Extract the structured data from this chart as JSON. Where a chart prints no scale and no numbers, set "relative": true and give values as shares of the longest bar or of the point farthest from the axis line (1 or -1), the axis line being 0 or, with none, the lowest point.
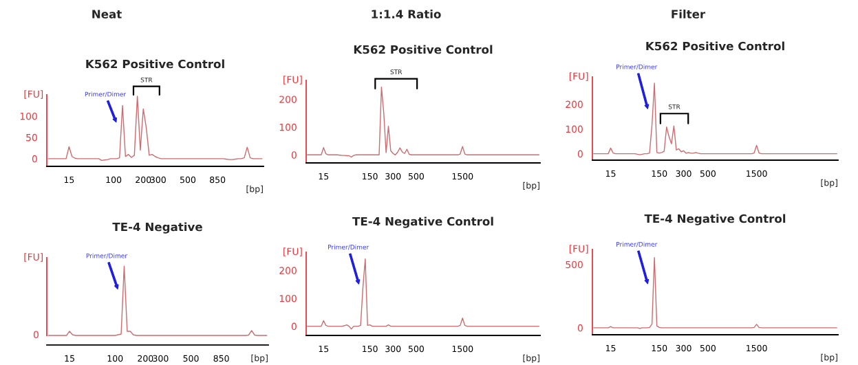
{
  "chart_data": [
    {
      "type": "line",
      "title": "Neat",
      "subtitle": "K562 Positive Control",
      "xlabel": "[bp]",
      "ylabel": "[FU]",
      "annotations": [
        "Primer/Dimer",
        "STR"
      ],
      "ylim": [
        -18,
        150
      ],
      "yticks": [
        0,
        50,
        100
      ],
      "categories": [
        null,
        null,
        null,
        null,
        null,
        null,
        null,
        "15",
        null,
        null,
        null,
        null,
        null,
        null,
        null,
        null,
        null,
        null,
        null,
        null,
        null,
        null,
        "100",
        null,
        null,
        null,
        null,
        null,
        null,
        null,
        null,
        null,
        "200",
        null,
        null,
        null,
        null,
        "300",
        null,
        null,
        null,
        null,
        null,
        null,
        null,
        null,
        null,
        "500",
        null,
        null,
        null,
        null,
        null,
        null,
        null,
        null,
        null,
        "850",
        null,
        null,
        null,
        null,
        null,
        null,
        null,
        null,
        null,
        null,
        null,
        null,
        null,
        null,
        null
      ],
      "series": [
        {
          "color": "#cd6b6e",
          "values": [
            0,
            0,
            0,
            0,
            0,
            0,
            0,
            28,
            5,
            1,
            0,
            0,
            0,
            0,
            0,
            0,
            0,
            0,
            -4,
            -3,
            -2,
            0,
            0,
            0,
            2,
            125,
            5,
            10,
            3,
            8,
            147,
            20,
            117,
            73,
            8,
            10,
            5,
            2,
            0,
            0,
            0,
            0,
            0,
            0,
            0,
            0,
            0,
            0,
            0,
            0,
            0,
            0,
            0,
            0,
            0,
            0,
            0,
            0,
            0,
            0,
            -1,
            -2,
            -2,
            -1,
            0,
            0,
            2,
            27,
            2,
            0,
            0,
            0,
            0
          ]
        }
      ]
    },
    {
      "type": "line",
      "title": "1:1.4 Ratio",
      "subtitle": "K562 Positive Control",
      "xlabel": "[bp]",
      "ylabel": "[FU]",
      "annotations": [
        "STR"
      ],
      "ylim": [
        -29,
        268
      ],
      "yticks": [
        0,
        100,
        200
      ],
      "categories": [
        null,
        null,
        null,
        null,
        null,
        null,
        null,
        "15",
        null,
        null,
        null,
        null,
        null,
        null,
        null,
        null,
        null,
        null,
        null,
        null,
        null,
        null,
        null,
        null,
        null,
        null,
        null,
        "150",
        null,
        null,
        null,
        null,
        null,
        null,
        null,
        null,
        null,
        "300",
        null,
        null,
        null,
        null,
        null,
        null,
        null,
        null,
        null,
        "500",
        null,
        null,
        null,
        null,
        null,
        null,
        null,
        null,
        null,
        null,
        null,
        null,
        null,
        null,
        null,
        null,
        null,
        null,
        null,
        "1500",
        null,
        null,
        null,
        null,
        null,
        null,
        null,
        null,
        null,
        null,
        null,
        null,
        null,
        null,
        null,
        null,
        null,
        null,
        null,
        null,
        null,
        null,
        null,
        null,
        null,
        null,
        null,
        null,
        null,
        null,
        null,
        null,
        null
      ],
      "series": [
        {
          "color": "#cd6b6e",
          "values": [
            0,
            0,
            0,
            0,
            0,
            0,
            0,
            26,
            4,
            0,
            0,
            0,
            0,
            0,
            -1,
            -2,
            -2,
            -3,
            -3,
            -8,
            -2,
            0,
            0,
            0,
            0,
            0,
            0,
            0,
            0,
            0,
            0,
            0,
            244,
            150,
            8,
            103,
            15,
            5,
            0,
            10,
            25,
            10,
            5,
            20,
            2,
            0,
            0,
            0,
            0,
            0,
            0,
            0,
            0,
            0,
            0,
            0,
            0,
            0,
            0,
            0,
            0,
            0,
            0,
            0,
            0,
            0,
            3,
            30,
            3,
            0,
            0,
            0,
            0,
            0,
            0,
            0,
            0,
            0,
            0,
            0,
            0,
            0,
            0,
            0,
            0,
            0,
            0,
            0,
            0,
            0,
            0,
            0,
            0,
            0,
            0,
            0,
            0,
            0,
            0,
            0,
            0
          ]
        }
      ]
    },
    {
      "type": "line",
      "title": "Filter",
      "subtitle": "K562 Positive Control",
      "xlabel": "[bp]",
      "ylabel": "[FU]",
      "annotations": [
        "Primer/Dimer",
        "STR"
      ],
      "ylim": [
        -26,
        310
      ],
      "yticks": [
        0,
        100,
        200
      ],
      "categories": [
        null,
        null,
        null,
        null,
        null,
        null,
        null,
        "15",
        null,
        null,
        null,
        null,
        null,
        null,
        null,
        null,
        null,
        null,
        null,
        null,
        null,
        null,
        null,
        null,
        null,
        null,
        null,
        "150",
        null,
        null,
        null,
        null,
        null,
        null,
        null,
        null,
        null,
        "300",
        null,
        null,
        null,
        null,
        null,
        null,
        null,
        null,
        null,
        "500",
        null,
        null,
        null,
        null,
        null,
        null,
        null,
        null,
        null,
        null,
        null,
        null,
        null,
        null,
        null,
        null,
        null,
        null,
        null,
        "1500",
        null,
        null,
        null,
        null,
        null,
        null,
        null,
        null,
        null,
        null,
        null,
        null,
        null,
        null,
        null,
        null,
        null,
        null,
        null,
        null,
        null,
        null,
        null,
        null,
        null,
        null,
        null,
        null,
        null,
        null,
        null,
        null,
        null
      ],
      "series": [
        {
          "color": "#cd6b6e",
          "values": [
            0,
            0,
            0,
            0,
            0,
            0,
            0,
            23,
            3,
            0,
            0,
            0,
            0,
            0,
            0,
            0,
            0,
            0,
            -2,
            -4,
            -2,
            0,
            0,
            3,
            117,
            285,
            5,
            3,
            5,
            10,
            108,
            69,
            40,
            112,
            15,
            20,
            8,
            12,
            2,
            5,
            2,
            2,
            5,
            2,
            0,
            0,
            0,
            0,
            0,
            0,
            0,
            0,
            0,
            0,
            0,
            0,
            0,
            0,
            0,
            0,
            0,
            0,
            0,
            0,
            0,
            0,
            3,
            34,
            3,
            0,
            0,
            0,
            0,
            0,
            0,
            0,
            0,
            0,
            0,
            0,
            0,
            0,
            0,
            0,
            0,
            0,
            0,
            0,
            0,
            0,
            0,
            0,
            0,
            0,
            0,
            0,
            0,
            0,
            0,
            0,
            0
          ]
        }
      ]
    },
    {
      "type": "line",
      "title": "TE-4 Negative",
      "xlabel": "[bp]",
      "ylabel": "[FU]",
      "relative": true,
      "annotations": [
        "Primer/Dimer",
        "0"
      ],
      "categories": [
        null,
        null,
        null,
        null,
        null,
        null,
        null,
        "15",
        null,
        null,
        null,
        null,
        null,
        null,
        null,
        null,
        null,
        null,
        null,
        null,
        null,
        null,
        "100",
        null,
        null,
        null,
        null,
        null,
        null,
        null,
        null,
        null,
        "200",
        null,
        null,
        null,
        null,
        "300",
        null,
        null,
        null,
        null,
        null,
        null,
        null,
        null,
        null,
        "500",
        null,
        null,
        null,
        null,
        null,
        null,
        null,
        null,
        null,
        "850",
        null,
        null,
        null,
        null,
        null,
        null,
        null,
        null,
        null,
        null,
        null,
        null,
        null,
        null,
        null
      ],
      "series": [
        {
          "color": "#cd6b6e",
          "values": [
            0,
            0,
            0,
            0,
            0,
            0,
            0,
            0.06,
            0.01,
            0,
            0,
            0,
            0,
            0,
            0,
            0,
            0,
            0,
            0,
            0,
            0,
            0,
            0,
            0.01,
            0.02,
            1.0,
            0.06,
            0.06,
            0.01,
            0,
            0,
            0,
            0,
            0,
            0,
            0,
            0,
            0,
            0,
            0,
            0,
            0,
            0,
            0,
            0,
            0,
            0,
            0,
            0,
            0,
            0,
            0,
            0,
            0,
            0,
            0,
            0,
            0,
            0,
            0,
            0,
            0,
            0,
            0,
            0,
            0,
            0.005,
            0.07,
            0.005,
            0,
            0,
            0,
            0
          ]
        }
      ]
    },
    {
      "type": "line",
      "title": "TE-4 Negative Control",
      "xlabel": "[bp]",
      "ylabel": "[FU]",
      "annotations": [
        "Primer/Dimer"
      ],
      "ylim": [
        -33,
        265
      ],
      "yticks": [
        0,
        100,
        200
      ],
      "categories": [
        null,
        null,
        null,
        null,
        null,
        null,
        null,
        "15",
        null,
        null,
        null,
        null,
        null,
        null,
        null,
        null,
        null,
        null,
        null,
        null,
        null,
        null,
        null,
        null,
        null,
        null,
        null,
        "150",
        null,
        null,
        null,
        null,
        null,
        null,
        null,
        null,
        null,
        "300",
        null,
        null,
        null,
        null,
        null,
        null,
        null,
        null,
        null,
        "500",
        null,
        null,
        null,
        null,
        null,
        null,
        null,
        null,
        null,
        null,
        null,
        null,
        null,
        null,
        null,
        null,
        null,
        null,
        null,
        "1500",
        null,
        null,
        null,
        null,
        null,
        null,
        null,
        null,
        null,
        null,
        null,
        null,
        null,
        null,
        null,
        null,
        null,
        null,
        null,
        null,
        null,
        null,
        null,
        null,
        null,
        null,
        null,
        null,
        null,
        null,
        null,
        null,
        null
      ],
      "series": [
        {
          "color": "#cd6b6e",
          "values": [
            0,
            0,
            0,
            0,
            0,
            0,
            0,
            20,
            3,
            0,
            0,
            0,
            0,
            0,
            0,
            0,
            2,
            5,
            0,
            -10,
            0,
            0,
            0,
            3,
            139,
            241,
            3,
            5,
            0,
            0,
            0,
            0,
            0,
            0,
            0,
            5,
            0,
            0,
            0,
            0,
            0,
            0,
            0,
            0,
            0,
            0,
            0,
            0,
            0,
            0,
            0,
            0,
            0,
            0,
            0,
            0,
            0,
            0,
            0,
            0,
            0,
            0,
            0,
            0,
            0,
            0,
            3,
            29,
            3,
            0,
            0,
            0,
            0,
            0,
            0,
            0,
            0,
            0,
            0,
            0,
            0,
            0,
            0,
            0,
            0,
            0,
            0,
            0,
            0,
            0,
            0,
            0,
            0,
            0,
            0,
            0,
            0,
            0,
            0,
            0,
            0
          ]
        }
      ]
    },
    {
      "type": "line",
      "title": "TE-4 Negative Control",
      "xlabel": "[bp]",
      "ylabel": "[FU]",
      "annotations": [
        "Primer/Dimer"
      ],
      "ylim": [
        -55,
        618
      ],
      "yticks": [
        0,
        500
      ],
      "categories": [
        null,
        null,
        null,
        null,
        null,
        null,
        null,
        "15",
        null,
        null,
        null,
        null,
        null,
        null,
        null,
        null,
        null,
        null,
        null,
        null,
        null,
        null,
        null,
        null,
        null,
        null,
        null,
        "150",
        null,
        null,
        null,
        null,
        null,
        null,
        null,
        null,
        null,
        "300",
        null,
        null,
        null,
        null,
        null,
        null,
        null,
        null,
        null,
        "500",
        null,
        null,
        null,
        null,
        null,
        null,
        null,
        null,
        null,
        null,
        null,
        null,
        null,
        null,
        null,
        null,
        null,
        null,
        null,
        "1500",
        null,
        null,
        null,
        null,
        null,
        null,
        null,
        null,
        null,
        null,
        null,
        null,
        null,
        null,
        null,
        null,
        null,
        null,
        null,
        null,
        null,
        null,
        null,
        null,
        null,
        null,
        null,
        null,
        null,
        null,
        null,
        null,
        null
      ],
      "series": [
        {
          "color": "#cd6b6e",
          "values": [
            0,
            0,
            0,
            0,
            0,
            0,
            0,
            10,
            0,
            0,
            0,
            0,
            0,
            0,
            0,
            0,
            0,
            0,
            0,
            -5,
            0,
            0,
            0,
            3,
            30,
            555,
            15,
            3,
            0,
            0,
            0,
            0,
            0,
            0,
            0,
            0,
            0,
            0,
            0,
            0,
            0,
            0,
            0,
            0,
            0,
            0,
            0,
            0,
            0,
            0,
            0,
            0,
            0,
            0,
            0,
            0,
            0,
            0,
            0,
            0,
            0,
            0,
            0,
            0,
            0,
            0,
            3,
            27,
            3,
            0,
            0,
            0,
            0,
            0,
            0,
            0,
            0,
            0,
            0,
            0,
            0,
            0,
            0,
            0,
            0,
            0,
            0,
            0,
            0,
            0,
            0,
            0,
            0,
            0,
            0,
            0,
            0,
            0,
            0,
            0,
            0
          ]
        }
      ]
    }
  ]
}
